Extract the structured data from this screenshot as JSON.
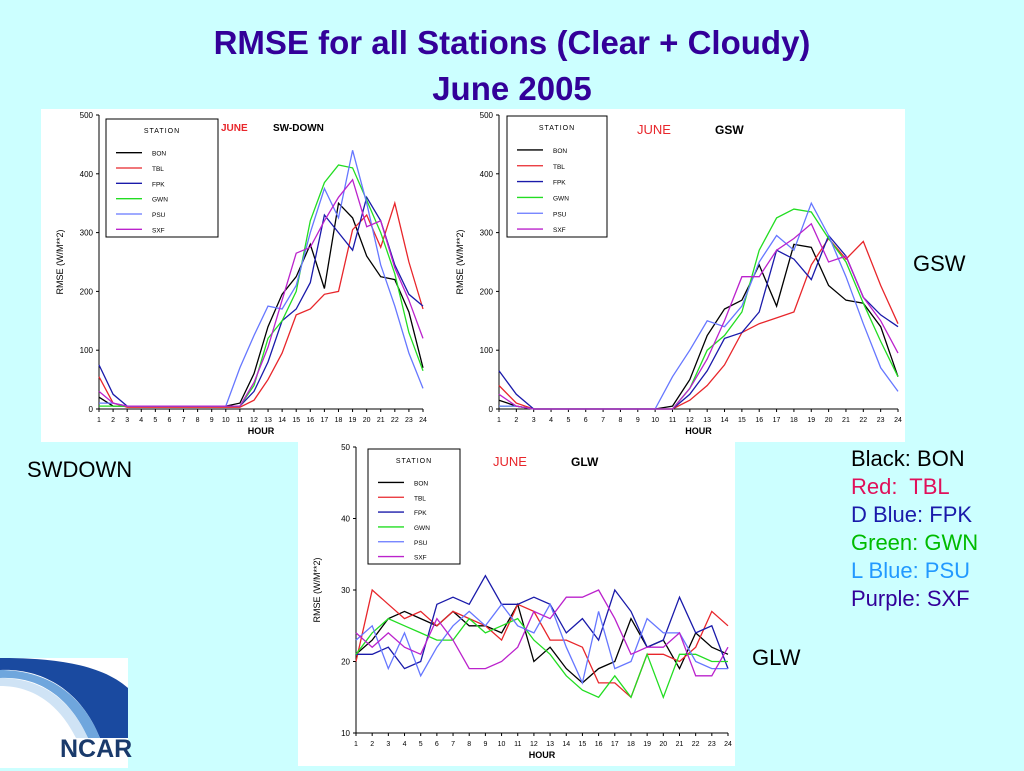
{
  "slide": {
    "title_line1": "RMSE for all Stations (Clear + Cloudy)",
    "title_line2": "June 2005",
    "label_swdown": "SWDOWN",
    "label_gsw": "GSW",
    "label_glw": "GLW",
    "logo_text": "NCAR"
  },
  "legend_key": [
    {
      "text": "Black: BON",
      "color": "#000000"
    },
    {
      "text": "Red:  TBL",
      "color": "#e0105a"
    },
    {
      "text": "D Blue: FPK",
      "color": "#1a1aaa"
    },
    {
      "text": "Green: GWN",
      "color": "#00bb00"
    },
    {
      "text": "L Blue: PSU",
      "color": "#2299ff"
    },
    {
      "text": "Purple: SXF",
      "color": "#330099"
    }
  ],
  "chart_data": [
    {
      "type": "line",
      "month": "JUNE",
      "variable": "SW-DOWN",
      "xlabel": "HOUR",
      "ylabel": "RMSE (W/M**2)",
      "legend_title": "STATION",
      "legend_position": "top-left",
      "x": [
        1,
        2,
        3,
        4,
        5,
        6,
        7,
        8,
        9,
        10,
        11,
        12,
        13,
        14,
        15,
        16,
        17,
        18,
        19,
        20,
        21,
        22,
        23,
        24
      ],
      "xlim": [
        1,
        24
      ],
      "ylim": [
        0,
        500
      ],
      "yticks": [
        0,
        100,
        200,
        300,
        400,
        500
      ],
      "series": [
        {
          "name": "BON",
          "color": "#000000",
          "values": [
            20,
            5,
            5,
            5,
            5,
            5,
            5,
            5,
            5,
            5,
            10,
            60,
            140,
            195,
            225,
            280,
            205,
            350,
            325,
            260,
            225,
            220,
            165,
            70
          ]
        },
        {
          "name": "TBL",
          "color": "#e8262b",
          "values": [
            55,
            10,
            3,
            3,
            3,
            3,
            3,
            3,
            3,
            3,
            3,
            15,
            50,
            95,
            160,
            170,
            195,
            200,
            305,
            330,
            275,
            350,
            250,
            170
          ]
        },
        {
          "name": "FPK",
          "color": "#1a1aaa",
          "values": [
            75,
            25,
            5,
            5,
            5,
            5,
            5,
            5,
            5,
            5,
            5,
            30,
            80,
            150,
            170,
            215,
            330,
            300,
            270,
            360,
            320,
            245,
            195,
            175
          ]
        },
        {
          "name": "GWN",
          "color": "#22dd22",
          "values": [
            5,
            5,
            5,
            5,
            5,
            5,
            5,
            5,
            5,
            5,
            5,
            40,
            120,
            150,
            200,
            320,
            385,
            415,
            410,
            355,
            300,
            230,
            130,
            65
          ]
        },
        {
          "name": "PSU",
          "color": "#6677ff",
          "values": [
            10,
            10,
            5,
            5,
            5,
            5,
            5,
            5,
            5,
            5,
            70,
            125,
            175,
            170,
            210,
            300,
            375,
            325,
            440,
            350,
            245,
            175,
            95,
            35
          ]
        },
        {
          "name": "SXF",
          "color": "#bb22cc",
          "values": [
            30,
            10,
            5,
            5,
            5,
            5,
            5,
            5,
            5,
            5,
            5,
            45,
            105,
            185,
            265,
            275,
            320,
            360,
            390,
            310,
            320,
            240,
            185,
            120
          ]
        }
      ]
    },
    {
      "type": "line",
      "month": "JUNE",
      "variable": "GSW",
      "xlabel": "HOUR",
      "ylabel": "RMSE (W/M**2)",
      "legend_title": "STATION",
      "legend_position": "top-left",
      "x": [
        1,
        2,
        3,
        4,
        5,
        6,
        7,
        8,
        9,
        10,
        11,
        12,
        13,
        14,
        15,
        16,
        17,
        18,
        19,
        20,
        21,
        22,
        23,
        24
      ],
      "xlim": [
        1,
        24
      ],
      "ylim": [
        0,
        500
      ],
      "yticks": [
        0,
        100,
        200,
        300,
        400,
        500
      ],
      "series": [
        {
          "name": "BON",
          "color": "#000000",
          "values": [
            15,
            5,
            0,
            0,
            0,
            0,
            0,
            0,
            0,
            0,
            5,
            50,
            125,
            170,
            185,
            245,
            175,
            280,
            275,
            210,
            185,
            180,
            140,
            55
          ]
        },
        {
          "name": "TBL",
          "color": "#e8262b",
          "values": [
            40,
            10,
            0,
            0,
            0,
            0,
            0,
            0,
            0,
            0,
            0,
            15,
            40,
            75,
            130,
            145,
            155,
            165,
            245,
            290,
            255,
            285,
            210,
            145
          ]
        },
        {
          "name": "FPK",
          "color": "#1a1aaa",
          "values": [
            65,
            25,
            0,
            0,
            0,
            0,
            0,
            0,
            0,
            0,
            0,
            25,
            65,
            120,
            130,
            165,
            270,
            255,
            220,
            295,
            260,
            190,
            160,
            140
          ]
        },
        {
          "name": "GWN",
          "color": "#22dd22",
          "values": [
            5,
            5,
            0,
            0,
            0,
            0,
            0,
            0,
            0,
            0,
            0,
            35,
            100,
            125,
            165,
            270,
            325,
            340,
            335,
            290,
            250,
            180,
            115,
            55
          ]
        },
        {
          "name": "PSU",
          "color": "#6677ff",
          "values": [
            5,
            5,
            0,
            0,
            0,
            0,
            0,
            0,
            0,
            0,
            55,
            100,
            150,
            140,
            175,
            250,
            295,
            270,
            350,
            295,
            225,
            145,
            70,
            30
          ]
        },
        {
          "name": "SXF",
          "color": "#bb22cc",
          "values": [
            25,
            5,
            0,
            0,
            0,
            0,
            0,
            0,
            0,
            0,
            0,
            35,
            85,
            150,
            225,
            225,
            270,
            290,
            315,
            250,
            260,
            190,
            150,
            95
          ]
        }
      ]
    },
    {
      "type": "line",
      "month": "JUNE",
      "variable": "GLW",
      "xlabel": "HOUR",
      "ylabel": "RMSE (W/M**2)",
      "legend_title": "STATION",
      "legend_position": "top-left",
      "x": [
        1,
        2,
        3,
        4,
        5,
        6,
        7,
        8,
        9,
        10,
        11,
        12,
        13,
        14,
        15,
        16,
        17,
        18,
        19,
        20,
        21,
        22,
        23,
        24
      ],
      "xlim": [
        1,
        24
      ],
      "ylim": [
        10,
        50
      ],
      "yticks": [
        10,
        20,
        30,
        40,
        50
      ],
      "series": [
        {
          "name": "BON",
          "color": "#000000",
          "values": [
            21,
            23,
            26,
            27,
            26,
            25,
            27,
            25,
            25,
            24,
            28,
            20,
            22,
            19,
            17,
            19,
            20,
            26,
            22,
            23,
            19,
            24,
            22,
            21
          ]
        },
        {
          "name": "TBL",
          "color": "#e8262b",
          "values": [
            20,
            30,
            28,
            26,
            27,
            25,
            27,
            26,
            25,
            23,
            28,
            27,
            23,
            23,
            22,
            17,
            17,
            15,
            21,
            21,
            20,
            22,
            27,
            25
          ]
        },
        {
          "name": "FPK",
          "color": "#1a1aaa",
          "values": [
            21,
            21,
            22,
            19,
            20,
            28,
            29,
            28,
            32,
            28,
            28,
            29,
            28,
            24,
            26,
            23,
            30,
            27,
            22,
            23,
            29,
            24,
            25,
            19
          ]
        },
        {
          "name": "GWN",
          "color": "#22dd22",
          "values": [
            21,
            24,
            26,
            25,
            24,
            23,
            23,
            26,
            24,
            25,
            26,
            23,
            21,
            18,
            16,
            15,
            18,
            15,
            21,
            15,
            21,
            21,
            20,
            20
          ]
        },
        {
          "name": "PSU",
          "color": "#6677ff",
          "values": [
            23,
            25,
            19,
            24,
            18,
            22,
            25,
            27,
            25,
            28,
            25,
            24,
            28,
            22,
            17,
            27,
            19,
            20,
            26,
            24,
            24,
            20,
            19,
            19
          ]
        },
        {
          "name": "SXF",
          "color": "#bb22cc",
          "values": [
            24,
            22,
            24,
            22,
            21,
            26,
            23,
            19,
            19,
            20,
            22,
            27,
            26,
            29,
            29,
            30,
            26,
            21,
            22,
            22,
            24,
            18,
            18,
            22
          ]
        }
      ]
    }
  ]
}
